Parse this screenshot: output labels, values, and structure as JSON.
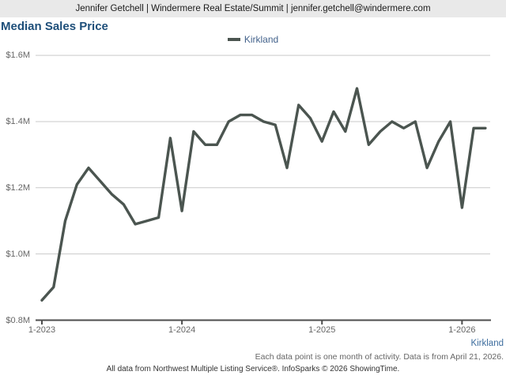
{
  "header": {
    "text": "Jennifer Getchell | Windermere Real Estate/Summit | jennifer.getchell@windermere.com"
  },
  "title": "Median Sales Price",
  "legend": {
    "label": "Kirkland",
    "swatch_color": "#4b5550"
  },
  "chart_data": {
    "type": "line",
    "title": "Median Sales Price",
    "x": [
      "1-2023",
      "2-2023",
      "3-2023",
      "4-2023",
      "5-2023",
      "6-2023",
      "7-2023",
      "8-2023",
      "9-2023",
      "10-2023",
      "11-2023",
      "12-2023",
      "1-2024",
      "2-2024",
      "3-2024",
      "4-2024",
      "5-2024",
      "6-2024",
      "7-2024",
      "8-2024",
      "9-2024",
      "10-2024",
      "11-2024",
      "12-2024",
      "1-2025",
      "2-2025",
      "3-2025",
      "4-2025",
      "5-2025",
      "6-2025",
      "7-2025",
      "8-2025",
      "9-2025",
      "10-2025",
      "11-2025",
      "12-2025",
      "1-2026",
      "2-2026",
      "3-2026"
    ],
    "series": [
      {
        "name": "Kirkland",
        "color": "#4b5550",
        "values": [
          0.86,
          0.9,
          1.1,
          1.21,
          1.26,
          1.22,
          1.18,
          1.15,
          1.09,
          1.1,
          1.11,
          1.35,
          1.13,
          1.37,
          1.33,
          1.33,
          1.4,
          1.42,
          1.42,
          1.4,
          1.39,
          1.26,
          1.45,
          1.41,
          1.34,
          1.43,
          1.37,
          1.5,
          1.33,
          1.37,
          1.4,
          1.38,
          1.4,
          1.26,
          1.34,
          1.4,
          1.14,
          1.38,
          1.38
        ]
      }
    ],
    "unit": "USD millions",
    "ylim": [
      0.8,
      1.6
    ],
    "y_ticks": [
      0.8,
      1.0,
      1.2,
      1.4,
      1.6
    ],
    "y_tick_labels": [
      "$0.8M",
      "$1.0M",
      "$1.2M",
      "$1.4M",
      "$1.6M"
    ],
    "x_tick_indices": [
      0,
      12,
      24,
      36
    ],
    "x_tick_labels": [
      "1-2023",
      "1-2024",
      "1-2025",
      "1-2026"
    ],
    "grid": true,
    "legend_position": "top-center"
  },
  "footer": {
    "region_label": "Kirkland",
    "note_line1": "Each data point is one month of activity. Data is from April 21, 2026.",
    "note_line2": "All data from Northwest Multiple Listing Service®. InfoSparks © 2026 ShowingTime."
  },
  "colors": {
    "line": "#4b5550",
    "title": "#1d4e79",
    "legend_text": "#44638c",
    "region_label": "#3d6d9e",
    "grid": "#c9c9c9",
    "axis": "#4d4d4d",
    "header_bg": "#e9e9e9"
  }
}
